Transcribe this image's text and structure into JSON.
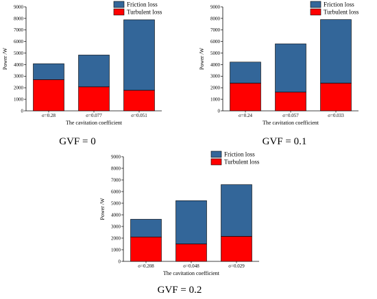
{
  "colors": {
    "friction": "#336699",
    "turbulent": "#ff0000"
  },
  "chart_data": [
    {
      "type": "bar",
      "stacked": true,
      "caption": "GVF = 0",
      "categories": [
        "σ=0.28",
        "σ=0.077",
        "σ=0.051"
      ],
      "series": [
        {
          "name": "Turbulent loss",
          "values": [
            2700,
            2080,
            1780
          ]
        },
        {
          "name": "Friction loss",
          "values": [
            1380,
            2750,
            6100
          ]
        }
      ],
      "totals": [
        4080,
        4830,
        7880
      ],
      "xlabel": "The cavitation coefficient",
      "ylabel": "Power /W",
      "ylim": [
        0,
        9000
      ],
      "yticks": [
        "0",
        "1000",
        "2000",
        "3000",
        "4000",
        "5000",
        "6000",
        "7000",
        "8000",
        "9000"
      ],
      "legend_position": "top-right",
      "grid": false
    },
    {
      "type": "bar",
      "stacked": true,
      "caption": "GVF = 0.1",
      "categories": [
        "σ=0.24",
        "σ=0.057",
        "σ=0.033"
      ],
      "series": [
        {
          "name": "Turbulent loss",
          "values": [
            2400,
            1620,
            2400
          ]
        },
        {
          "name": "Friction loss",
          "values": [
            1820,
            4180,
            5500
          ]
        }
      ],
      "totals": [
        4220,
        5800,
        7900
      ],
      "xlabel": "The cavitation coefficient",
      "ylabel": "Power /W",
      "ylim": [
        0,
        9000
      ],
      "yticks": [
        "0",
        "1000",
        "2000",
        "3000",
        "4000",
        "5000",
        "6000",
        "7000",
        "8000",
        "9000"
      ],
      "legend_position": "top-right",
      "grid": false
    },
    {
      "type": "bar",
      "stacked": true,
      "caption": "GVF = 0.2",
      "categories": [
        "σ=0.208",
        "σ=0.048",
        "σ=0.029"
      ],
      "series": [
        {
          "name": "Turbulent loss",
          "values": [
            2100,
            1500,
            2150
          ]
        },
        {
          "name": "Friction loss",
          "values": [
            1520,
            3720,
            4450
          ]
        }
      ],
      "totals": [
        3620,
        5220,
        6600
      ],
      "xlabel": "The cavitation coefficient",
      "ylabel": "Power /W",
      "ylim": [
        0,
        9000
      ],
      "yticks": [
        "0",
        "1000",
        "2000",
        "3000",
        "4000",
        "5000",
        "6000",
        "7000",
        "8000",
        "9000"
      ],
      "legend_position": "top-right",
      "grid": false
    }
  ]
}
